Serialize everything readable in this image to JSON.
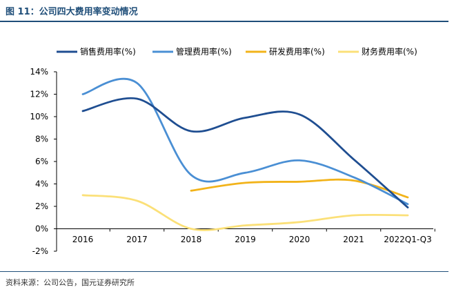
{
  "figure": {
    "title": "图 11：公司四大费用率变动情况",
    "source": "资料来源：公司公告，国元证券研究所"
  },
  "chart_data": {
    "type": "line",
    "categories": [
      "2016",
      "2017",
      "2018",
      "2019",
      "2020",
      "2021",
      "2022Q1-Q3"
    ],
    "ylim": [
      -2,
      14
    ],
    "yticks": [
      -2,
      0,
      2,
      4,
      6,
      8,
      10,
      12,
      14
    ],
    "ytick_labels": [
      "-2%",
      "0%",
      "2%",
      "4%",
      "6%",
      "8%",
      "10%",
      "12%",
      "14%"
    ],
    "grid": false,
    "legend_position": "top",
    "smooth": true,
    "series": [
      {
        "name": "销售费用率(%)",
        "color": "#1f4e91",
        "values": [
          10.5,
          11.6,
          8.7,
          9.9,
          10.2,
          6.2,
          1.9
        ]
      },
      {
        "name": "管理费用率(%)",
        "color": "#4a8fd4",
        "values": [
          12.0,
          13.0,
          4.8,
          5.0,
          6.1,
          4.6,
          2.2
        ]
      },
      {
        "name": "研发费用率(%)",
        "color": "#f2b31a",
        "values": [
          null,
          null,
          3.4,
          4.1,
          4.2,
          4.3,
          2.8
        ]
      },
      {
        "name": "财务费用率(%)",
        "color": "#fbe078",
        "values": [
          3.0,
          2.5,
          0.0,
          0.3,
          0.6,
          1.2,
          1.2
        ]
      }
    ]
  }
}
